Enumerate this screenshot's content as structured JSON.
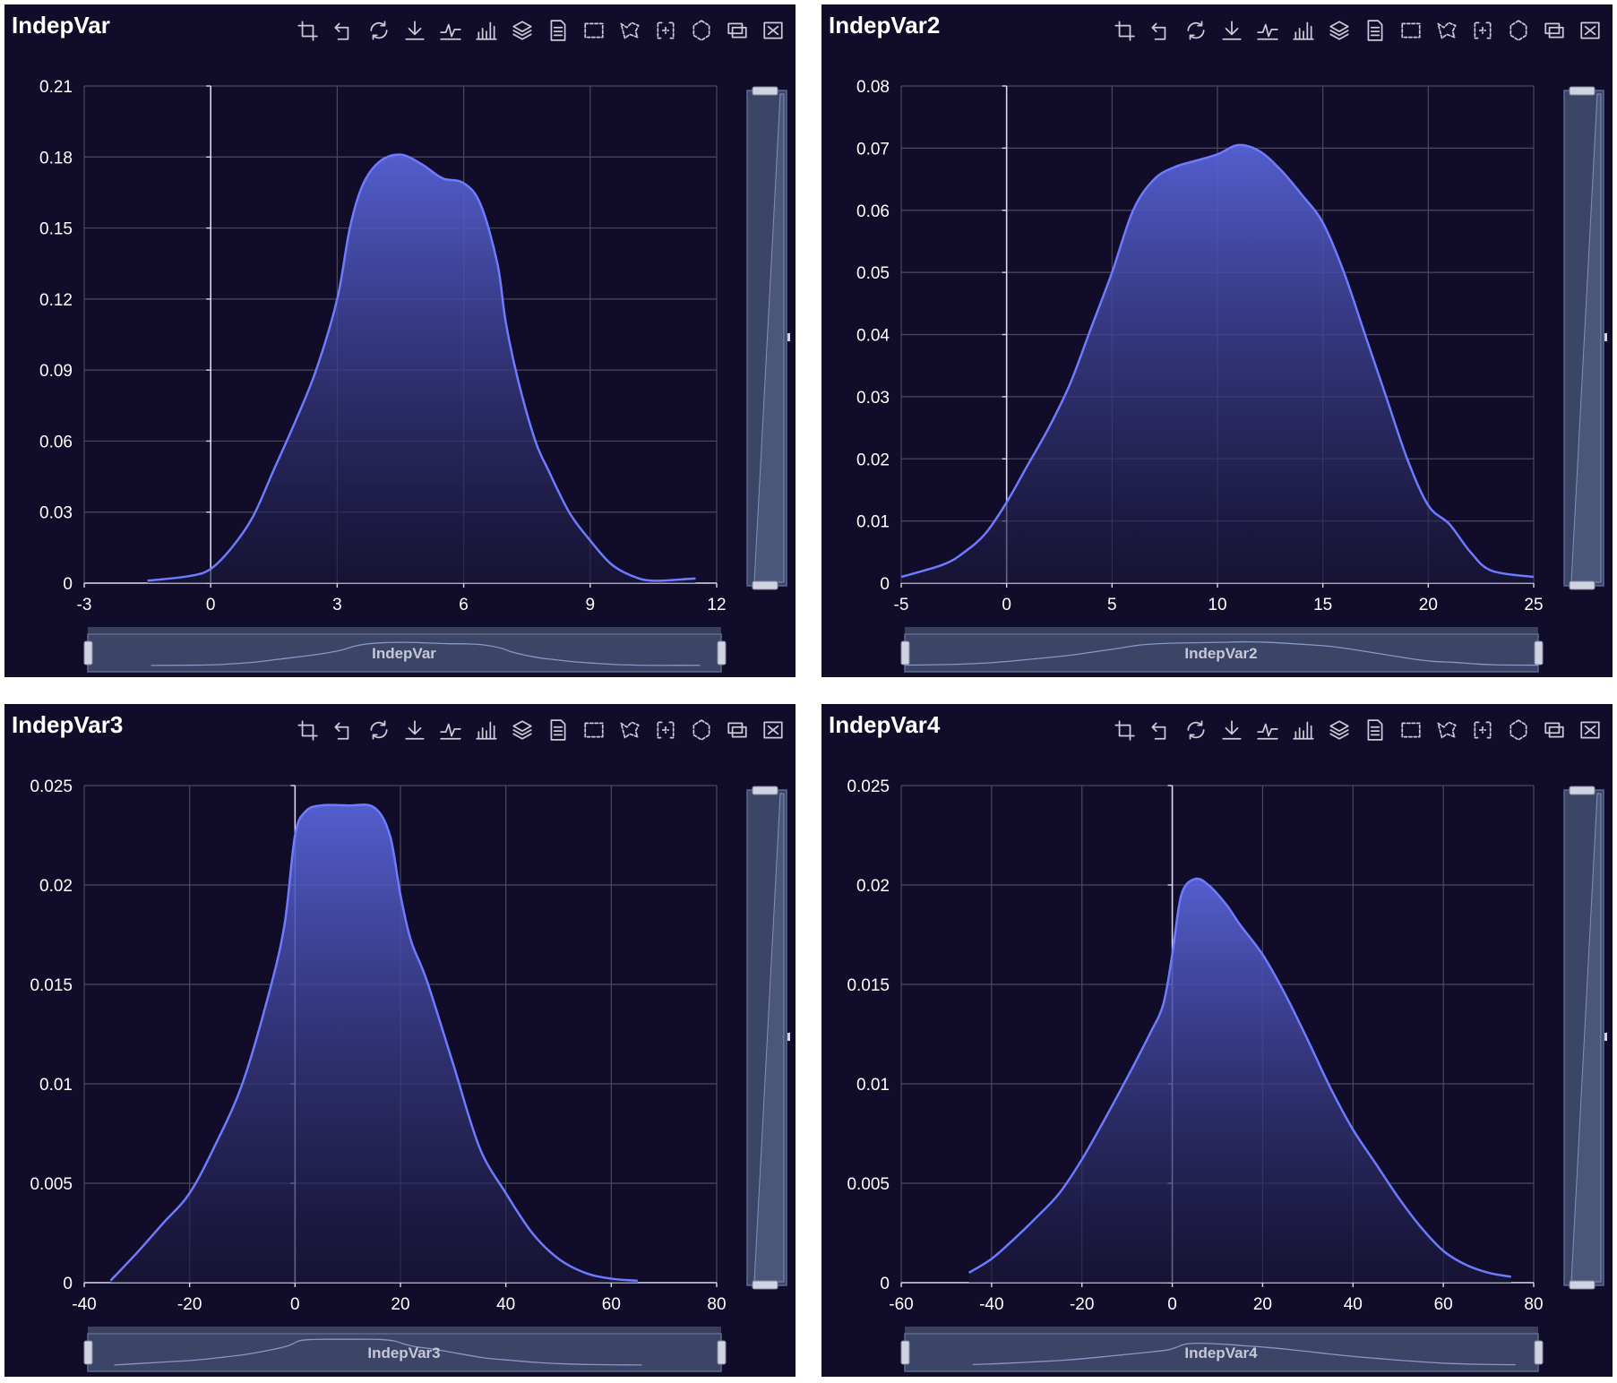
{
  "toolbar": [
    {
      "icon": "crop-icon"
    },
    {
      "icon": "undo-crop-icon"
    },
    {
      "icon": "refresh-icon"
    },
    {
      "icon": "download-icon"
    },
    {
      "icon": "line-chart-icon"
    },
    {
      "icon": "bar-chart-icon"
    },
    {
      "icon": "stack-icon"
    },
    {
      "icon": "data-view-icon"
    },
    {
      "icon": "rect-select-icon"
    },
    {
      "icon": "lasso-select-icon"
    },
    {
      "icon": "keep-select-icon"
    },
    {
      "icon": "clear-select-icon"
    },
    {
      "icon": "window-icon"
    },
    {
      "icon": "close-icon"
    }
  ],
  "colors": {
    "background": "#100c29",
    "series_line": "#6e7bff",
    "series_fill_top": "#5762d6",
    "grid": "#4a4a5c",
    "text": "#ffffff",
    "zoom": "#3b4566"
  },
  "chart_data": [
    {
      "type": "area",
      "title": "IndepVar",
      "legend_label": "IndepVar",
      "xlim": [
        -3,
        12
      ],
      "ylim": [
        0,
        0.21
      ],
      "xticks": [
        -3,
        0,
        3,
        6,
        9,
        12
      ],
      "xtick_labels": [
        "-3",
        "0",
        "3",
        "6",
        "9",
        "12"
      ],
      "yticks": [
        0,
        0.03,
        0.06,
        0.09,
        0.12,
        0.15,
        0.18,
        0.21
      ],
      "ytick_labels": [
        "0",
        "0.03",
        "0.06",
        "0.09",
        "0.12",
        "0.15",
        "0.18",
        "0.21"
      ],
      "grid": true,
      "x": [
        -1.5,
        -0.5,
        0,
        0.5,
        1.0,
        1.5,
        2.0,
        2.5,
        3.0,
        3.3,
        3.6,
        4.0,
        4.5,
        5.0,
        5.5,
        6.0,
        6.4,
        6.8,
        7.0,
        7.3,
        7.7,
        8.0,
        8.5,
        9.0,
        9.5,
        10.0,
        10.5,
        11.5
      ],
      "y": [
        0.001,
        0.003,
        0.006,
        0.015,
        0.028,
        0.048,
        0.068,
        0.09,
        0.12,
        0.15,
        0.168,
        0.178,
        0.181,
        0.177,
        0.171,
        0.169,
        0.16,
        0.135,
        0.11,
        0.085,
        0.06,
        0.048,
        0.03,
        0.018,
        0.008,
        0.003,
        0.001,
        0.002
      ]
    },
    {
      "type": "area",
      "title": "IndepVar2",
      "legend_label": "IndepVar2",
      "xlim": [
        -5,
        25
      ],
      "ylim": [
        0,
        0.08
      ],
      "xticks": [
        -5,
        0,
        5,
        10,
        15,
        20,
        25
      ],
      "xtick_labels": [
        "-5",
        "0",
        "5",
        "10",
        "15",
        "20",
        "25"
      ],
      "yticks": [
        0,
        0.01,
        0.02,
        0.03,
        0.04,
        0.05,
        0.06,
        0.07,
        0.08
      ],
      "ytick_labels": [
        "0",
        "0.01",
        "0.02",
        "0.03",
        "0.04",
        "0.05",
        "0.06",
        "0.07",
        "0.08"
      ],
      "grid": true,
      "x": [
        -5,
        -3,
        -2,
        -1,
        0,
        1,
        2,
        3,
        4,
        5,
        6,
        7,
        8,
        9,
        10,
        11,
        12,
        13,
        14,
        15,
        16,
        17,
        18,
        19,
        20,
        21,
        22,
        23,
        25
      ],
      "y": [
        0.001,
        0.003,
        0.005,
        0.008,
        0.013,
        0.019,
        0.025,
        0.032,
        0.041,
        0.05,
        0.06,
        0.065,
        0.067,
        0.068,
        0.069,
        0.0705,
        0.0695,
        0.0665,
        0.0625,
        0.058,
        0.05,
        0.04,
        0.03,
        0.02,
        0.0125,
        0.0095,
        0.005,
        0.002,
        0.001
      ]
    },
    {
      "type": "area",
      "title": "IndepVar3",
      "legend_label": "IndepVar3",
      "xlim": [
        -40,
        80
      ],
      "ylim": [
        0,
        0.025
      ],
      "xticks": [
        -40,
        -20,
        0,
        20,
        40,
        60,
        80
      ],
      "xtick_labels": [
        "-40",
        "-20",
        "0",
        "20",
        "40",
        "60",
        "80"
      ],
      "yticks": [
        0,
        0.005,
        0.01,
        0.015,
        0.02,
        0.025
      ],
      "ytick_labels": [
        "0",
        "0.005",
        "0.01",
        "0.015",
        "0.02",
        "0.025"
      ],
      "grid": true,
      "x": [
        -35,
        -30,
        -25,
        -20,
        -15,
        -10,
        -5,
        -2,
        0,
        2,
        5,
        10,
        15,
        18,
        20,
        22,
        25,
        30,
        35,
        40,
        45,
        50,
        55,
        60,
        65
      ],
      "y": [
        0.0001,
        0.0015,
        0.003,
        0.0045,
        0.007,
        0.01,
        0.0145,
        0.018,
        0.0225,
        0.0237,
        0.024,
        0.024,
        0.0239,
        0.0225,
        0.0195,
        0.0172,
        0.0152,
        0.011,
        0.0068,
        0.0045,
        0.0025,
        0.0012,
        0.0005,
        0.0002,
        0.0001
      ]
    },
    {
      "type": "area",
      "title": "IndepVar4",
      "legend_label": "IndepVar4",
      "xlim": [
        -60,
        80
      ],
      "ylim": [
        0,
        0.025
      ],
      "xticks": [
        -60,
        -40,
        -20,
        0,
        20,
        40,
        60,
        80
      ],
      "xtick_labels": [
        "-60",
        "-40",
        "-20",
        "0",
        "20",
        "40",
        "60",
        "80"
      ],
      "yticks": [
        0,
        0.005,
        0.01,
        0.015,
        0.02,
        0.025
      ],
      "ytick_labels": [
        "0",
        "0.005",
        "0.01",
        "0.015",
        "0.02",
        "0.025"
      ],
      "grid": true,
      "x": [
        -45,
        -40,
        -35,
        -30,
        -25,
        -20,
        -15,
        -10,
        -5,
        -2,
        0,
        2,
        5,
        8,
        12,
        15,
        20,
        25,
        30,
        35,
        40,
        45,
        50,
        55,
        60,
        65,
        70,
        75
      ],
      "y": [
        0.0005,
        0.0012,
        0.0022,
        0.0033,
        0.0045,
        0.0062,
        0.0082,
        0.0103,
        0.0125,
        0.014,
        0.0165,
        0.0195,
        0.0203,
        0.02,
        0.019,
        0.018,
        0.0165,
        0.0145,
        0.0122,
        0.0098,
        0.0077,
        0.006,
        0.0043,
        0.0028,
        0.0016,
        0.0009,
        0.0005,
        0.0003
      ]
    }
  ]
}
